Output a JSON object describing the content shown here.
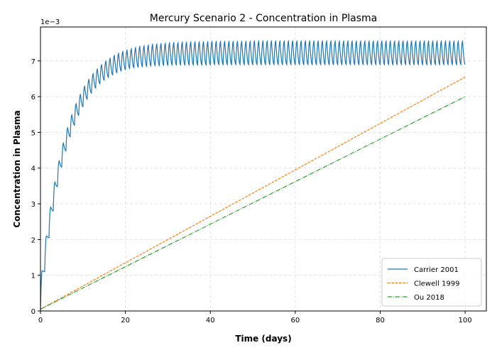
{
  "chart_data": {
    "type": "line",
    "title": "Mercury Scenario 2 - Concentration in Plasma",
    "xlabel": "Time (days)",
    "ylabel": "Concentration in Plasma",
    "y_offset_label": "1e−3",
    "xlim": [
      0,
      105
    ],
    "ylim": [
      0,
      7.95
    ],
    "x_ticks": [
      0,
      20,
      40,
      60,
      80,
      100
    ],
    "y_ticks": [
      0,
      1,
      2,
      3,
      4,
      5,
      6,
      7
    ],
    "grid": true,
    "legend_position": "lower-right",
    "series": [
      {
        "name": "Carrier 2001",
        "color": "#1f77b4",
        "style": "solid",
        "dosing_interval_days": 1,
        "daily_peaks": [
          1.13,
          2.1,
          2.91,
          3.61,
          4.2,
          4.7,
          5.13,
          5.49,
          5.8,
          6.06,
          6.29,
          6.48,
          6.64,
          6.77,
          6.89,
          6.99,
          7.07,
          7.15,
          7.21,
          7.26,
          7.3,
          7.34,
          7.37,
          7.4,
          7.42,
          7.44,
          7.46,
          7.47,
          7.48,
          7.49,
          7.5,
          7.51,
          7.51,
          7.52,
          7.52,
          7.53,
          7.53,
          7.53,
          7.53,
          7.53,
          7.54,
          7.54,
          7.54,
          7.54,
          7.54,
          7.54,
          7.54,
          7.54,
          7.54,
          7.54,
          7.55,
          7.55,
          7.55,
          7.55,
          7.55,
          7.55,
          7.55,
          7.55,
          7.55,
          7.55,
          7.55,
          7.55,
          7.55,
          7.55,
          7.55,
          7.55,
          7.55,
          7.55,
          7.55,
          7.55,
          7.55,
          7.55,
          7.55,
          7.55,
          7.55,
          7.55,
          7.55,
          7.55,
          7.55,
          7.55,
          7.55,
          7.55,
          7.55,
          7.55,
          7.55,
          7.55,
          7.55,
          7.55,
          7.55,
          7.55,
          7.55,
          7.55,
          7.55,
          7.55,
          7.55,
          7.55,
          7.55,
          7.55,
          7.55,
          7.55
        ],
        "daily_troughs": [
          1.1,
          2.05,
          2.8,
          3.48,
          4.03,
          4.48,
          4.88,
          5.2,
          5.48,
          5.72,
          5.93,
          6.1,
          6.24,
          6.36,
          6.46,
          6.54,
          6.61,
          6.67,
          6.72,
          6.76,
          6.79,
          6.81,
          6.83,
          6.84,
          6.85,
          6.86,
          6.87,
          6.87,
          6.88,
          6.88,
          6.89,
          6.89,
          6.89,
          6.89,
          6.89,
          6.89,
          6.89,
          6.89,
          6.89,
          6.89,
          6.9,
          6.9,
          6.9,
          6.9,
          6.9,
          6.9,
          6.9,
          6.9,
          6.9,
          6.9,
          6.9,
          6.9,
          6.9,
          6.9,
          6.9,
          6.9,
          6.9,
          6.9,
          6.9,
          6.9,
          6.9,
          6.9,
          6.9,
          6.9,
          6.9,
          6.9,
          6.9,
          6.9,
          6.9,
          6.9,
          6.9,
          6.9,
          6.9,
          6.9,
          6.9,
          6.9,
          6.9,
          6.9,
          6.9,
          6.9,
          6.9,
          6.9,
          6.9,
          6.9,
          6.9,
          6.9,
          6.9,
          6.9,
          6.9,
          6.9,
          6.9,
          6.9,
          6.9,
          6.9,
          6.9,
          6.9,
          6.9,
          6.9,
          6.9,
          6.9
        ]
      },
      {
        "name": "Clewell 1999",
        "color": "#ff7f0e",
        "style": "dashed",
        "x": [
          0,
          100
        ],
        "y": [
          0.05,
          6.55
        ]
      },
      {
        "name": "Ou 2018",
        "color": "#2ca02c",
        "style": "dashdot",
        "x": [
          0,
          100
        ],
        "y": [
          0.05,
          6.0
        ]
      }
    ]
  }
}
